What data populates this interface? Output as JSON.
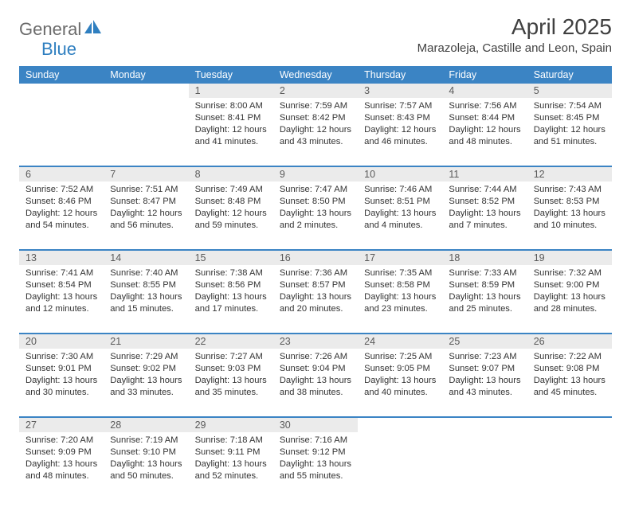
{
  "logo": {
    "text1": "General",
    "text2": "Blue"
  },
  "title": "April 2025",
  "subtitle": "Marazoleja, Castille and Leon, Spain",
  "header_bg_color": "#3b84c4",
  "header_text_color": "#ffffff",
  "daynum_bg_color": "#ebebeb",
  "border_color": "#3b84c4",
  "day_headers": [
    "Sunday",
    "Monday",
    "Tuesday",
    "Wednesday",
    "Thursday",
    "Friday",
    "Saturday"
  ],
  "weeks": [
    [
      null,
      null,
      {
        "n": "1",
        "sr": "Sunrise: 8:00 AM",
        "ss": "Sunset: 8:41 PM",
        "dl": "Daylight: 12 hours and 41 minutes."
      },
      {
        "n": "2",
        "sr": "Sunrise: 7:59 AM",
        "ss": "Sunset: 8:42 PM",
        "dl": "Daylight: 12 hours and 43 minutes."
      },
      {
        "n": "3",
        "sr": "Sunrise: 7:57 AM",
        "ss": "Sunset: 8:43 PM",
        "dl": "Daylight: 12 hours and 46 minutes."
      },
      {
        "n": "4",
        "sr": "Sunrise: 7:56 AM",
        "ss": "Sunset: 8:44 PM",
        "dl": "Daylight: 12 hours and 48 minutes."
      },
      {
        "n": "5",
        "sr": "Sunrise: 7:54 AM",
        "ss": "Sunset: 8:45 PM",
        "dl": "Daylight: 12 hours and 51 minutes."
      }
    ],
    [
      {
        "n": "6",
        "sr": "Sunrise: 7:52 AM",
        "ss": "Sunset: 8:46 PM",
        "dl": "Daylight: 12 hours and 54 minutes."
      },
      {
        "n": "7",
        "sr": "Sunrise: 7:51 AM",
        "ss": "Sunset: 8:47 PM",
        "dl": "Daylight: 12 hours and 56 minutes."
      },
      {
        "n": "8",
        "sr": "Sunrise: 7:49 AM",
        "ss": "Sunset: 8:48 PM",
        "dl": "Daylight: 12 hours and 59 minutes."
      },
      {
        "n": "9",
        "sr": "Sunrise: 7:47 AM",
        "ss": "Sunset: 8:50 PM",
        "dl": "Daylight: 13 hours and 2 minutes."
      },
      {
        "n": "10",
        "sr": "Sunrise: 7:46 AM",
        "ss": "Sunset: 8:51 PM",
        "dl": "Daylight: 13 hours and 4 minutes."
      },
      {
        "n": "11",
        "sr": "Sunrise: 7:44 AM",
        "ss": "Sunset: 8:52 PM",
        "dl": "Daylight: 13 hours and 7 minutes."
      },
      {
        "n": "12",
        "sr": "Sunrise: 7:43 AM",
        "ss": "Sunset: 8:53 PM",
        "dl": "Daylight: 13 hours and 10 minutes."
      }
    ],
    [
      {
        "n": "13",
        "sr": "Sunrise: 7:41 AM",
        "ss": "Sunset: 8:54 PM",
        "dl": "Daylight: 13 hours and 12 minutes."
      },
      {
        "n": "14",
        "sr": "Sunrise: 7:40 AM",
        "ss": "Sunset: 8:55 PM",
        "dl": "Daylight: 13 hours and 15 minutes."
      },
      {
        "n": "15",
        "sr": "Sunrise: 7:38 AM",
        "ss": "Sunset: 8:56 PM",
        "dl": "Daylight: 13 hours and 17 minutes."
      },
      {
        "n": "16",
        "sr": "Sunrise: 7:36 AM",
        "ss": "Sunset: 8:57 PM",
        "dl": "Daylight: 13 hours and 20 minutes."
      },
      {
        "n": "17",
        "sr": "Sunrise: 7:35 AM",
        "ss": "Sunset: 8:58 PM",
        "dl": "Daylight: 13 hours and 23 minutes."
      },
      {
        "n": "18",
        "sr": "Sunrise: 7:33 AM",
        "ss": "Sunset: 8:59 PM",
        "dl": "Daylight: 13 hours and 25 minutes."
      },
      {
        "n": "19",
        "sr": "Sunrise: 7:32 AM",
        "ss": "Sunset: 9:00 PM",
        "dl": "Daylight: 13 hours and 28 minutes."
      }
    ],
    [
      {
        "n": "20",
        "sr": "Sunrise: 7:30 AM",
        "ss": "Sunset: 9:01 PM",
        "dl": "Daylight: 13 hours and 30 minutes."
      },
      {
        "n": "21",
        "sr": "Sunrise: 7:29 AM",
        "ss": "Sunset: 9:02 PM",
        "dl": "Daylight: 13 hours and 33 minutes."
      },
      {
        "n": "22",
        "sr": "Sunrise: 7:27 AM",
        "ss": "Sunset: 9:03 PM",
        "dl": "Daylight: 13 hours and 35 minutes."
      },
      {
        "n": "23",
        "sr": "Sunrise: 7:26 AM",
        "ss": "Sunset: 9:04 PM",
        "dl": "Daylight: 13 hours and 38 minutes."
      },
      {
        "n": "24",
        "sr": "Sunrise: 7:25 AM",
        "ss": "Sunset: 9:05 PM",
        "dl": "Daylight: 13 hours and 40 minutes."
      },
      {
        "n": "25",
        "sr": "Sunrise: 7:23 AM",
        "ss": "Sunset: 9:07 PM",
        "dl": "Daylight: 13 hours and 43 minutes."
      },
      {
        "n": "26",
        "sr": "Sunrise: 7:22 AM",
        "ss": "Sunset: 9:08 PM",
        "dl": "Daylight: 13 hours and 45 minutes."
      }
    ],
    [
      {
        "n": "27",
        "sr": "Sunrise: 7:20 AM",
        "ss": "Sunset: 9:09 PM",
        "dl": "Daylight: 13 hours and 48 minutes."
      },
      {
        "n": "28",
        "sr": "Sunrise: 7:19 AM",
        "ss": "Sunset: 9:10 PM",
        "dl": "Daylight: 13 hours and 50 minutes."
      },
      {
        "n": "29",
        "sr": "Sunrise: 7:18 AM",
        "ss": "Sunset: 9:11 PM",
        "dl": "Daylight: 13 hours and 52 minutes."
      },
      {
        "n": "30",
        "sr": "Sunrise: 7:16 AM",
        "ss": "Sunset: 9:12 PM",
        "dl": "Daylight: 13 hours and 55 minutes."
      },
      null,
      null,
      null
    ]
  ]
}
